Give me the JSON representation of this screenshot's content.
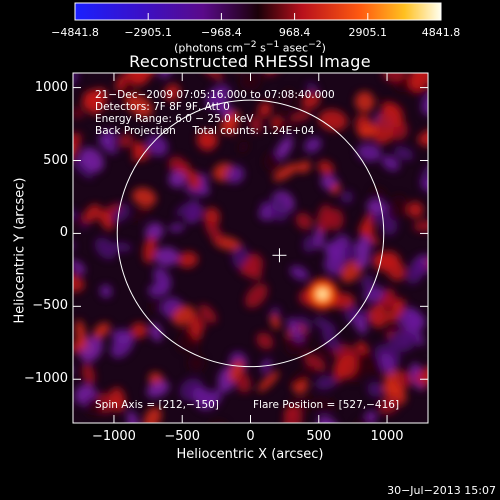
{
  "colorbar": {
    "ticks": [
      "−4841.8",
      "−2905.1",
      "−968.4",
      "968.4",
      "2905.1",
      "4841.8"
    ],
    "units_html": "(photons cm<sup>−2</sup> s<sup>−1</sup> asec<sup>−2</sup>)"
  },
  "title": "Reconstructed RHESSI Image",
  "info": {
    "line1": "21−Dec−2009 07:05:16.000 to 07:08:40.000",
    "line2": "Detectors: 7F 8F 9F, Att 0",
    "line3": "Energy Range: 6.0 − 25.0 keV",
    "line4": "Back Projection     Total counts: 1.24E+04",
    "spin": "Spin Axis = [212,−150]",
    "flare": "Flare Position = [527,−416]"
  },
  "footer": "30−Jul−2013 15:07",
  "chart_data": {
    "type": "heatmap",
    "title": "Reconstructed RHESSI Image",
    "xlabel": "Heliocentric X (arcsec)",
    "ylabel": "Heliocentric Y (arcsec)",
    "xlim": [
      -1300,
      1300
    ],
    "ylim": [
      -1300,
      1100
    ],
    "xticks": [
      -1000,
      -500,
      0,
      500,
      1000
    ],
    "xtick_labels": [
      "−1000",
      "−500",
      "0",
      "500",
      "1000"
    ],
    "yticks": [
      1000,
      500,
      0,
      -500,
      -1000
    ],
    "ytick_labels": [
      "1000",
      "500",
      "0",
      "−500",
      "−1000"
    ],
    "colorbar_range": [
      -4841.8,
      4841.8
    ],
    "colorbar_units": "photons cm-2 s-1 asec-2",
    "solar_limb_radius_arcsec": 976,
    "spin_axis": [
      212,
      -150
    ],
    "flare_position": [
      527,
      -416
    ],
    "peak_value": 4841.8
  }
}
